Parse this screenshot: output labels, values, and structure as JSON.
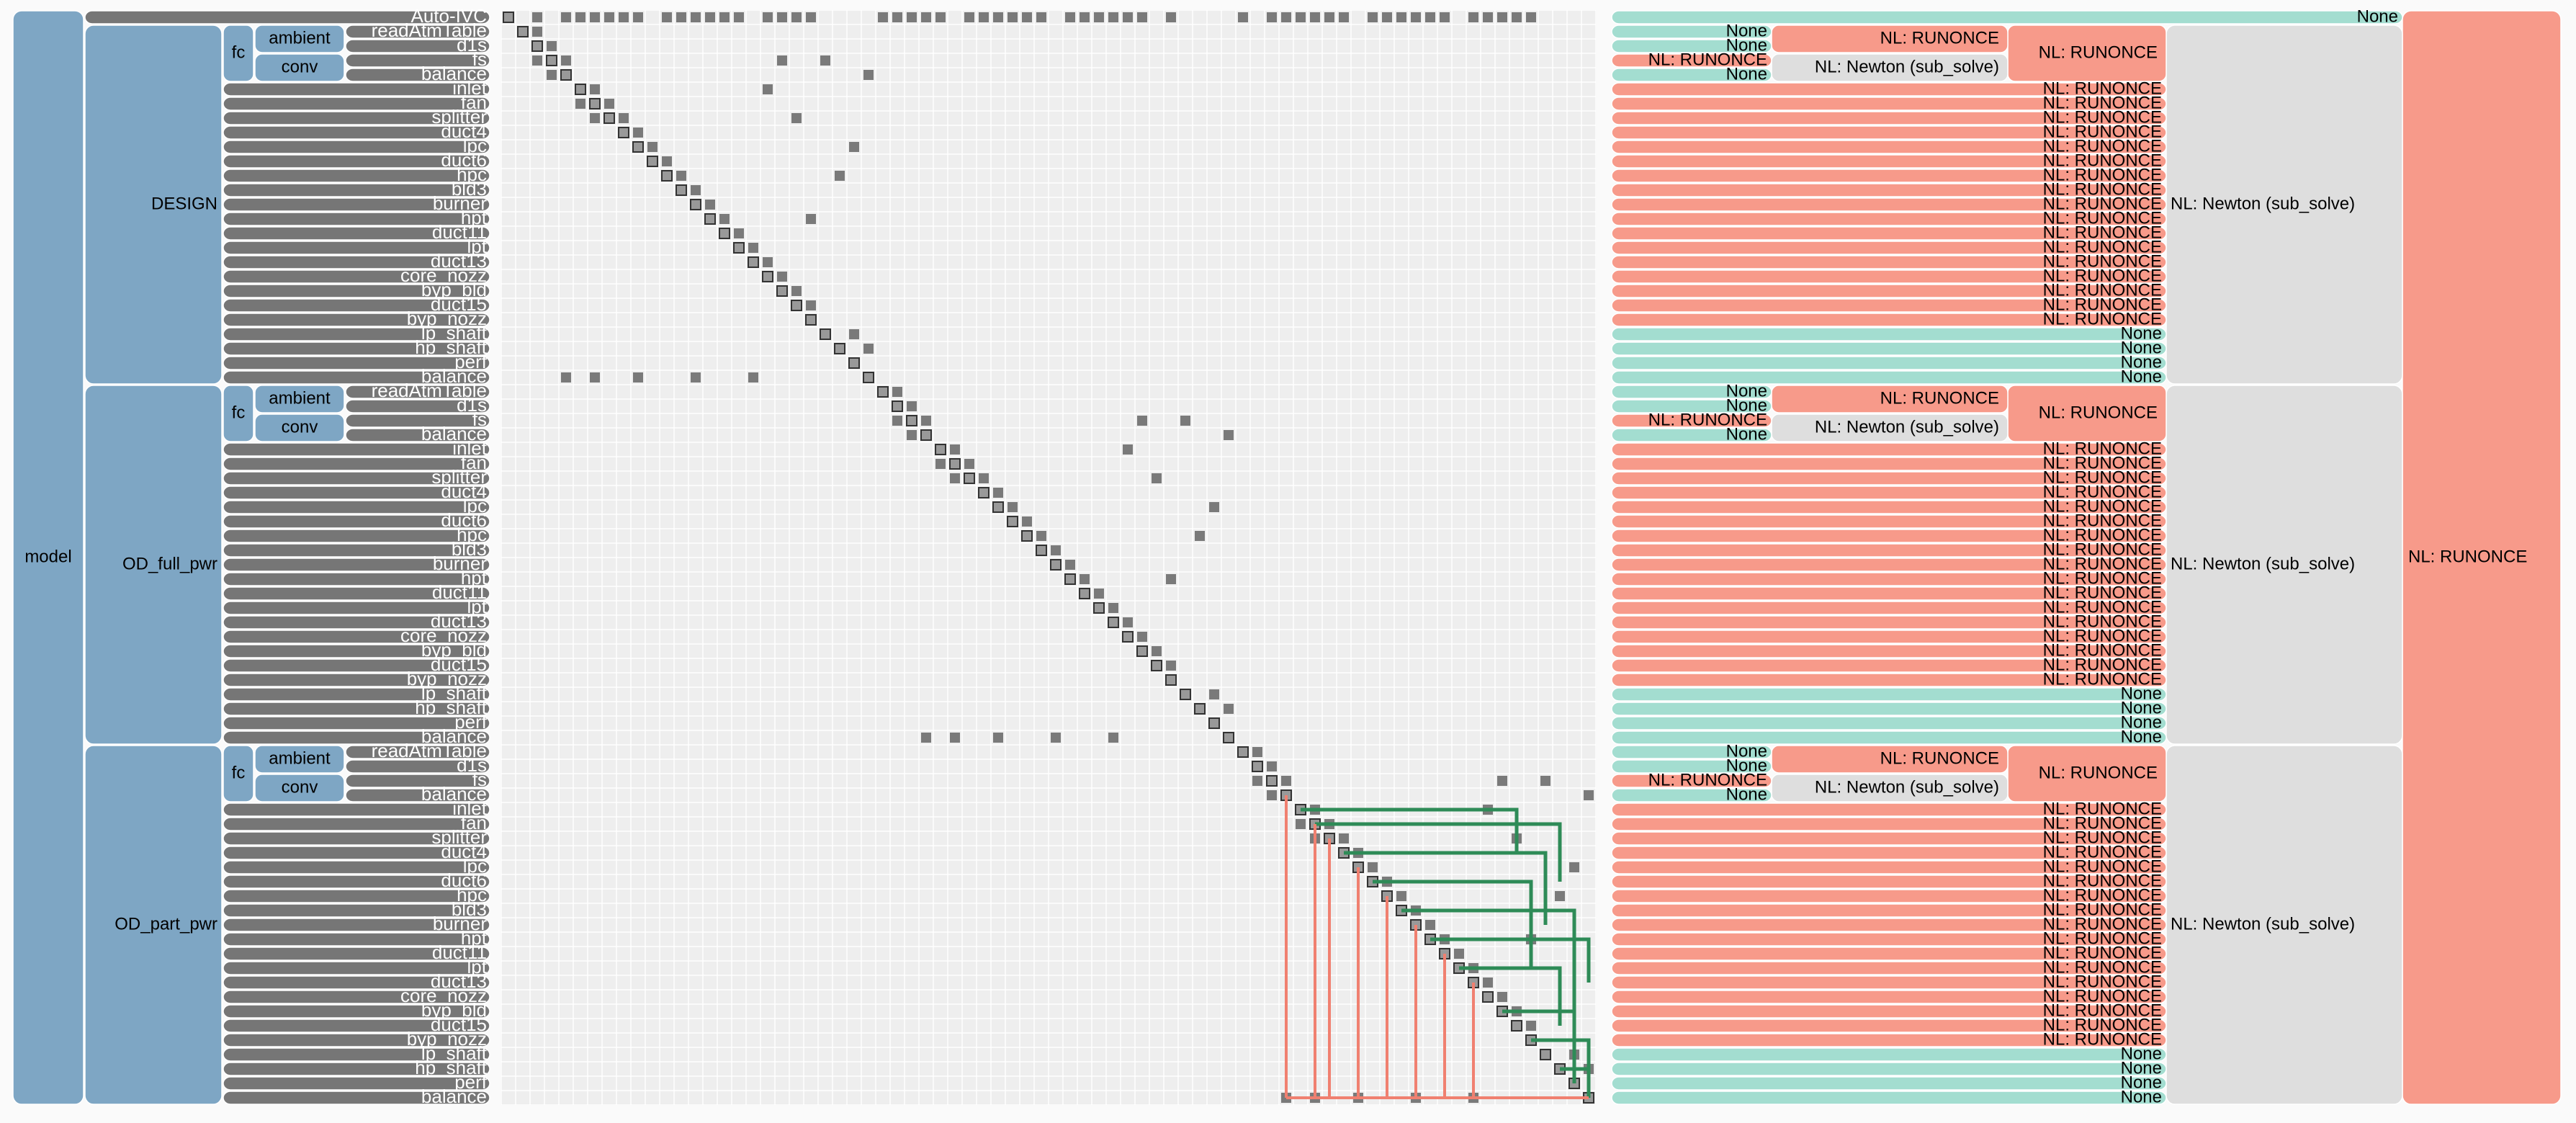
{
  "model": {
    "label": "model",
    "solver": "NL: RUNONCE"
  },
  "auto_ivc": {
    "label": "Auto-IVC",
    "solver": "None"
  },
  "colors": {
    "system": "#7ea6c4",
    "component": "#767676",
    "solver": {
      "None": "#a3ddd0",
      "NL: RUNONCE": "#f79a8a",
      "NL: Newton (sub_solve)": "#dedede"
    }
  },
  "groups": [
    {
      "label": "DESIGN",
      "solver": "NL: Newton (sub_solve)",
      "fc": {
        "label": "fc",
        "solver": "NL: RUNONCE"
      },
      "ambient": {
        "label": "ambient",
        "solver": "NL: RUNONCE"
      },
      "conv": {
        "label": "conv",
        "solver": "NL: Newton (sub_solve)"
      },
      "components": [
        {
          "label": "readAtmTable",
          "solver": "None"
        },
        {
          "label": "d1s",
          "solver": "None"
        },
        {
          "label": "fs",
          "solver": "NL: RUNONCE"
        },
        {
          "label": "balance",
          "solver": "None"
        },
        {
          "label": "inlet",
          "solver": "NL: RUNONCE"
        },
        {
          "label": "fan",
          "solver": "NL: RUNONCE"
        },
        {
          "label": "splitter",
          "solver": "NL: RUNONCE"
        },
        {
          "label": "duct4",
          "solver": "NL: RUNONCE"
        },
        {
          "label": "lpc",
          "solver": "NL: RUNONCE"
        },
        {
          "label": "duct6",
          "solver": "NL: RUNONCE"
        },
        {
          "label": "hpc",
          "solver": "NL: RUNONCE"
        },
        {
          "label": "bld3",
          "solver": "NL: RUNONCE"
        },
        {
          "label": "burner",
          "solver": "NL: RUNONCE"
        },
        {
          "label": "hpt",
          "solver": "NL: RUNONCE"
        },
        {
          "label": "duct11",
          "solver": "NL: RUNONCE"
        },
        {
          "label": "lpt",
          "solver": "NL: RUNONCE"
        },
        {
          "label": "duct13",
          "solver": "NL: RUNONCE"
        },
        {
          "label": "core_nozz",
          "solver": "NL: RUNONCE"
        },
        {
          "label": "byp_bld",
          "solver": "NL: RUNONCE"
        },
        {
          "label": "duct15",
          "solver": "NL: RUNONCE"
        },
        {
          "label": "byp_nozz",
          "solver": "NL: RUNONCE"
        },
        {
          "label": "lp_shaft",
          "solver": "None"
        },
        {
          "label": "hp_shaft",
          "solver": "None"
        },
        {
          "label": "perf",
          "solver": "None"
        },
        {
          "label": "balance",
          "solver": "None"
        }
      ]
    },
    {
      "label": "OD_full_pwr",
      "solver": "NL: Newton (sub_solve)",
      "fc": {
        "label": "fc",
        "solver": "NL: RUNONCE"
      },
      "ambient": {
        "label": "ambient",
        "solver": "NL: RUNONCE"
      },
      "conv": {
        "label": "conv",
        "solver": "NL: Newton (sub_solve)"
      },
      "components": [
        {
          "label": "readAtmTable",
          "solver": "None"
        },
        {
          "label": "d1s",
          "solver": "None"
        },
        {
          "label": "fs",
          "solver": "NL: RUNONCE"
        },
        {
          "label": "balance",
          "solver": "None"
        },
        {
          "label": "inlet",
          "solver": "NL: RUNONCE"
        },
        {
          "label": "fan",
          "solver": "NL: RUNONCE"
        },
        {
          "label": "splitter",
          "solver": "NL: RUNONCE"
        },
        {
          "label": "duct4",
          "solver": "NL: RUNONCE"
        },
        {
          "label": "lpc",
          "solver": "NL: RUNONCE"
        },
        {
          "label": "duct6",
          "solver": "NL: RUNONCE"
        },
        {
          "label": "hpc",
          "solver": "NL: RUNONCE"
        },
        {
          "label": "bld3",
          "solver": "NL: RUNONCE"
        },
        {
          "label": "burner",
          "solver": "NL: RUNONCE"
        },
        {
          "label": "hpt",
          "solver": "NL: RUNONCE"
        },
        {
          "label": "duct11",
          "solver": "NL: RUNONCE"
        },
        {
          "label": "lpt",
          "solver": "NL: RUNONCE"
        },
        {
          "label": "duct13",
          "solver": "NL: RUNONCE"
        },
        {
          "label": "core_nozz",
          "solver": "NL: RUNONCE"
        },
        {
          "label": "byp_bld",
          "solver": "NL: RUNONCE"
        },
        {
          "label": "duct15",
          "solver": "NL: RUNONCE"
        },
        {
          "label": "byp_nozz",
          "solver": "NL: RUNONCE"
        },
        {
          "label": "lp_shaft",
          "solver": "None"
        },
        {
          "label": "hp_shaft",
          "solver": "None"
        },
        {
          "label": "perf",
          "solver": "None"
        },
        {
          "label": "balance",
          "solver": "None"
        }
      ]
    },
    {
      "label": "OD_part_pwr",
      "solver": "NL: Newton (sub_solve)",
      "fc": {
        "label": "fc",
        "solver": "NL: RUNONCE"
      },
      "ambient": {
        "label": "ambient",
        "solver": "NL: RUNONCE"
      },
      "conv": {
        "label": "conv",
        "solver": "NL: Newton (sub_solve)"
      },
      "components": [
        {
          "label": "readAtmTable",
          "solver": "None"
        },
        {
          "label": "d1s",
          "solver": "None"
        },
        {
          "label": "fs",
          "solver": "NL: RUNONCE"
        },
        {
          "label": "balance",
          "solver": "None"
        },
        {
          "label": "inlet",
          "solver": "NL: RUNONCE"
        },
        {
          "label": "fan",
          "solver": "NL: RUNONCE"
        },
        {
          "label": "splitter",
          "solver": "NL: RUNONCE"
        },
        {
          "label": "duct4",
          "solver": "NL: RUNONCE"
        },
        {
          "label": "lpc",
          "solver": "NL: RUNONCE"
        },
        {
          "label": "duct6",
          "solver": "NL: RUNONCE"
        },
        {
          "label": "hpc",
          "solver": "NL: RUNONCE"
        },
        {
          "label": "bld3",
          "solver": "NL: RUNONCE"
        },
        {
          "label": "burner",
          "solver": "NL: RUNONCE"
        },
        {
          "label": "hpt",
          "solver": "NL: RUNONCE"
        },
        {
          "label": "duct11",
          "solver": "NL: RUNONCE"
        },
        {
          "label": "lpt",
          "solver": "NL: RUNONCE"
        },
        {
          "label": "duct13",
          "solver": "NL: RUNONCE"
        },
        {
          "label": "core_nozz",
          "solver": "NL: RUNONCE"
        },
        {
          "label": "byp_bld",
          "solver": "NL: RUNONCE"
        },
        {
          "label": "duct15",
          "solver": "NL: RUNONCE"
        },
        {
          "label": "byp_nozz",
          "solver": "NL: RUNONCE"
        },
        {
          "label": "lp_shaft",
          "solver": "None"
        },
        {
          "label": "hp_shaft",
          "solver": "None"
        },
        {
          "label": "perf",
          "solver": "None"
        },
        {
          "label": "balance",
          "solver": "None"
        }
      ]
    }
  ]
}
